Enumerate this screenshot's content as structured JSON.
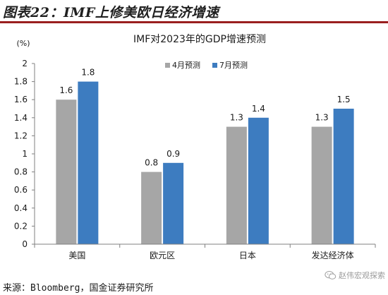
{
  "figure": {
    "title": "图表22：IMF上修美欧日经济增速",
    "source": "来源：Bloomberg，国金证券研究所",
    "watermark": "赵伟宏观探索"
  },
  "colors": {
    "title_rule": "#9a1f1f",
    "april": "#a6a6a6",
    "july": "#3d7cc0"
  },
  "icons": {
    "watermark_icon": "wechat-icon"
  },
  "chart_data": {
    "type": "bar",
    "title": "IMF对2023年的GDP增速预测",
    "ylabel": "(%)",
    "xlabel": "",
    "ylim": [
      0,
      2
    ],
    "yticks": [
      "0",
      "0.2",
      "0.4",
      "0.6",
      "0.8",
      "1",
      "1.2",
      "1.4",
      "1.6",
      "1.8",
      "2"
    ],
    "categories": [
      "美国",
      "欧元区",
      "日本",
      "发达经济体"
    ],
    "series": [
      {
        "name": "4月预测",
        "values": [
          1.6,
          0.8,
          1.3,
          1.3
        ],
        "labels": [
          "1.6",
          "0.8",
          "1.3",
          "1.3"
        ]
      },
      {
        "name": "7月预测",
        "values": [
          1.8,
          0.9,
          1.4,
          1.5
        ],
        "labels": [
          "1.8",
          "0.9",
          "1.4",
          "1.5"
        ]
      }
    ],
    "grid": false,
    "legend_position": "top-center"
  }
}
